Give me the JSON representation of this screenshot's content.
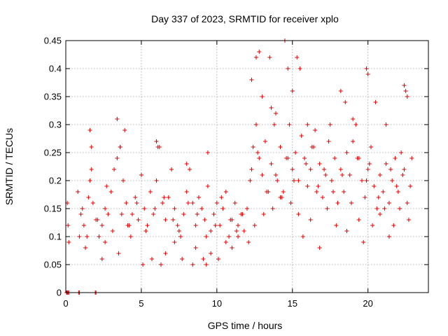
{
  "chart_data": {
    "type": "scatter",
    "title": "Day 337 of 2023, SRMTID for receiver xplo",
    "xlabel": "GPS time / hours",
    "ylabel": "SRMTID / TECUs",
    "xlim": [
      0,
      24
    ],
    "ylim": [
      0,
      0.45
    ],
    "xticks": [
      0,
      5,
      10,
      15,
      20
    ],
    "yticks": [
      0,
      0.05,
      0.1,
      0.15,
      0.2,
      0.25,
      0.3,
      0.35,
      0.4,
      0.45
    ],
    "ytick_labels": [
      "0",
      "0.05",
      "0.1",
      "0.15",
      "0.2",
      "0.25",
      "0.3",
      "0.35",
      "0.4",
      "0.45"
    ],
    "grid": true,
    "marker": "+",
    "color": "#e00000",
    "series": [
      {
        "x": [
          0.05,
          0.08,
          0.1,
          0.15,
          0.2,
          0.85,
          0.9,
          1.95,
          2.0,
          0.1,
          0.15,
          0.2,
          0.8,
          1.0,
          1.2,
          1.4,
          1.6,
          1.7,
          1.8,
          2.0,
          2.2,
          2.4,
          2.6,
          2.8,
          3.0,
          3.2,
          3.4,
          3.6,
          3.8,
          4.0,
          4.2,
          4.4,
          4.6,
          4.8,
          5.0,
          5.2,
          5.4,
          5.6,
          5.8,
          6.0,
          6.2,
          6.4,
          6.6,
          6.8,
          7.0,
          7.2,
          7.4,
          7.6,
          7.8,
          8.0,
          8.2,
          8.4,
          8.6,
          8.8,
          9.0,
          9.2,
          9.4,
          9.6,
          9.8,
          10.0,
          10.2,
          10.4,
          10.6,
          10.8,
          11.0,
          11.2,
          11.4,
          11.6,
          11.8,
          12.0,
          12.2,
          12.4,
          12.6,
          12.8,
          13.0,
          13.2,
          13.4,
          13.6,
          13.8,
          14.0,
          14.2,
          14.4,
          14.6,
          14.8,
          15.0,
          15.2,
          15.4,
          15.6,
          15.8,
          16.0,
          16.2,
          16.4,
          16.6,
          16.8,
          17.0,
          17.2,
          17.4,
          17.6,
          17.8,
          18.0,
          18.2,
          18.4,
          18.6,
          18.8,
          19.0,
          19.2,
          19.4,
          19.6,
          19.8,
          20.0,
          20.2,
          20.4,
          20.6,
          20.8,
          21.0,
          21.2,
          21.4,
          21.6,
          21.8,
          22.0,
          22.2,
          22.4,
          22.6,
          22.8,
          1.6,
          1.7,
          3.4,
          3.6,
          3.9,
          6.0,
          6.1,
          8.0,
          9.4,
          12.3,
          12.6,
          12.8,
          13.0,
          13.5,
          13.6,
          13.9,
          14.5,
          14.7,
          15.0,
          15.3,
          15.5,
          16.0,
          16.5,
          17.5,
          18.2,
          18.5,
          19.0,
          19.9,
          20.0,
          20.5,
          21.2,
          22.4,
          22.5,
          22.6,
          0.9,
          1.3,
          2.4,
          2.6,
          3.5,
          4.3,
          5.1,
          5.7,
          6.3,
          6.6,
          7.2,
          7.7,
          8.4,
          8.6,
          9.1,
          9.3,
          9.6,
          10.1,
          10.6,
          11.0,
          11.4,
          12.1,
          12.5,
          13.1,
          13.7,
          14.2,
          14.9,
          15.4,
          15.7,
          16.2,
          16.8,
          17.3,
          17.9,
          18.6,
          19.4,
          19.7,
          20.3,
          20.8,
          21.4,
          21.7,
          22.1,
          22.7,
          1.1,
          1.5,
          2.1,
          2.7,
          3.1,
          3.7,
          4.1,
          4.7,
          5.3,
          5.9,
          6.5,
          7.1,
          7.5,
          8.1,
          8.7,
          9.3,
          9.9,
          10.3,
          10.9,
          11.3,
          11.7,
          12.3,
          12.7,
          13.3,
          13.9,
          14.3,
          14.7,
          15.1,
          15.9,
          16.3,
          16.7,
          17.1,
          17.7,
          18.3,
          18.9,
          19.3,
          19.9,
          20.1,
          20.7,
          21.1,
          21.5,
          21.9,
          22.3,
          22.9
        ],
        "y": [
          0,
          0,
          0,
          0,
          0,
          0,
          0,
          0,
          0,
          0.16,
          0.12,
          0.09,
          0.18,
          0.14,
          0.12,
          0.1,
          0.2,
          0.22,
          0.16,
          0.13,
          0.1,
          0.12,
          0.15,
          0.14,
          0.18,
          0.22,
          0.24,
          0.26,
          0.2,
          0.16,
          0.12,
          0.14,
          0.17,
          0.13,
          0.21,
          0.15,
          0.12,
          0.18,
          0.14,
          0.2,
          0.26,
          0.16,
          0.13,
          0.17,
          0.22,
          0.15,
          0.12,
          0.1,
          0.14,
          0.18,
          0.22,
          0.16,
          0.12,
          0.17,
          0.15,
          0.13,
          0.19,
          0.11,
          0.14,
          0.16,
          0.12,
          0.15,
          0.18,
          0.1,
          0.13,
          0.16,
          0.12,
          0.14,
          0.11,
          0.15,
          0.2,
          0.26,
          0.3,
          0.24,
          0.21,
          0.27,
          0.18,
          0.23,
          0.3,
          0.2,
          0.26,
          0.18,
          0.24,
          0.3,
          0.22,
          0.25,
          0.2,
          0.28,
          0.24,
          0.19,
          0.22,
          0.26,
          0.18,
          0.23,
          0.17,
          0.21,
          0.27,
          0.2,
          0.24,
          0.16,
          0.22,
          0.18,
          0.25,
          0.21,
          0.27,
          0.3,
          0.24,
          0.2,
          0.17,
          0.22,
          0.26,
          0.19,
          0.15,
          0.21,
          0.18,
          0.23,
          0.16,
          0.2,
          0.24,
          0.18,
          0.25,
          0.22,
          0.16,
          0.19,
          0.29,
          0.26,
          0.31,
          0.26,
          0.29,
          0.27,
          0.26,
          0.23,
          0.25,
          0.38,
          0.42,
          0.43,
          0.35,
          0.42,
          0.33,
          0.32,
          0.45,
          0.4,
          0.36,
          0.42,
          0.4,
          0.3,
          0.29,
          0.3,
          0.36,
          0.34,
          0.31,
          0.4,
          0.39,
          0.34,
          0.3,
          0.37,
          0.36,
          0.35,
          0.1,
          0.08,
          0.06,
          0.09,
          0.07,
          0.1,
          0.05,
          0.06,
          0.05,
          0.07,
          0.09,
          0.06,
          0.05,
          0.08,
          0.06,
          0.05,
          0.07,
          0.06,
          0.09,
          0.08,
          0.1,
          0.09,
          0.12,
          0.14,
          0.15,
          0.17,
          0.16,
          0.14,
          0.1,
          0.13,
          0.08,
          0.15,
          0.12,
          0.11,
          0.13,
          0.09,
          0.12,
          0.14,
          0.1,
          0.12,
          0.15,
          0.13,
          0.15,
          0.17,
          0.13,
          0.19,
          0.11,
          0.14,
          0.12,
          0.16,
          0.11,
          0.15,
          0.17,
          0.13,
          0.11,
          0.16,
          0.14,
          0.1,
          0.12,
          0.17,
          0.13,
          0.11,
          0.14,
          0.22,
          0.25,
          0.18,
          0.21,
          0.17,
          0.24,
          0.2,
          0.23,
          0.26,
          0.19,
          0.22,
          0.18,
          0.21,
          0.16,
          0.24,
          0.2,
          0.23,
          0.17,
          0.15,
          0.22,
          0.19,
          0.21,
          0.24
        ]
      }
    ]
  }
}
